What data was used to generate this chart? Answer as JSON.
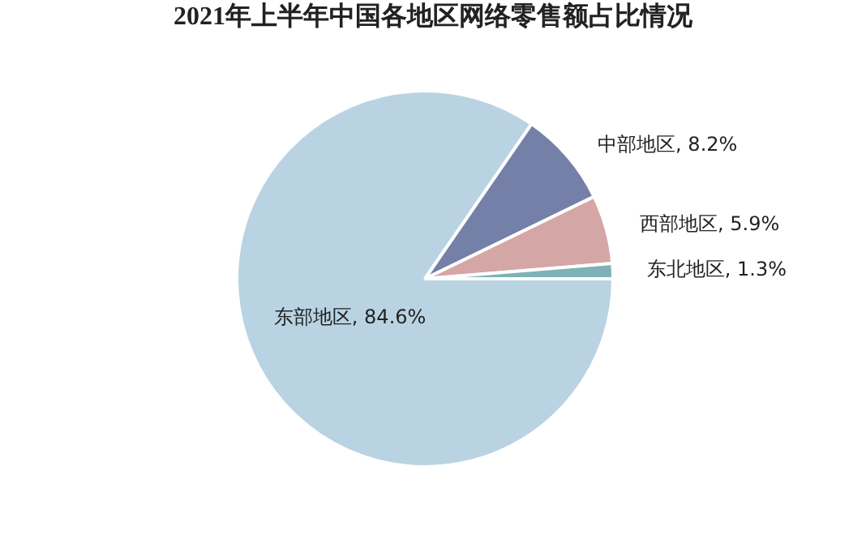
{
  "chart_data": {
    "type": "pie",
    "title": "2021年上半年中国各地区网络零售额占比情况",
    "categories": [
      "东部地区",
      "中部地区",
      "西部地区",
      "东北地区"
    ],
    "values": [
      84.6,
      8.2,
      5.9,
      1.3
    ],
    "value_labels": [
      "84.6%",
      "8.2%",
      "5.9%",
      "1.3%"
    ],
    "colors": [
      "#b9d3e3",
      "#7580a8",
      "#d5a6a6",
      "#7fb1b6"
    ],
    "legend": false
  }
}
